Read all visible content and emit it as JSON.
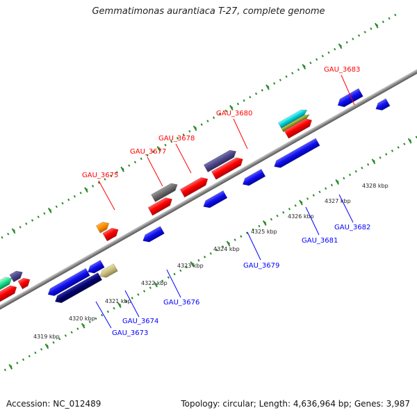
{
  "title": "Gemmatimonas aurantiaca T-27, complete genome",
  "footer": {
    "accession": "Accession: NC_012489",
    "summary": "Topology: circular; Length: 4,636,964 bp; Genes: 3,987"
  },
  "colors": {
    "forward_label": "#ff0000",
    "reverse_label": "#0000ff",
    "backbone": "#8c8c8c",
    "dotted_track": "#2a8a2a"
  },
  "kbp_ticks": [
    "4319 kbp",
    "4320 kbp",
    "4321 kbp",
    "4322 kbp",
    "4323 kbp",
    "4324 kbp",
    "4325 kbp",
    "4326 kbp",
    "4327 kbp",
    "4328 kbp"
  ],
  "gene_labels": {
    "forward": [
      "GAU_3675",
      "GAU_3677",
      "GAU_3678",
      "GAU_3680",
      "GAU_3683"
    ],
    "reverse": [
      "GAU_3673",
      "GAU_3674",
      "GAU_3676",
      "GAU_3679",
      "GAU_3681",
      "GAU_3682"
    ]
  }
}
